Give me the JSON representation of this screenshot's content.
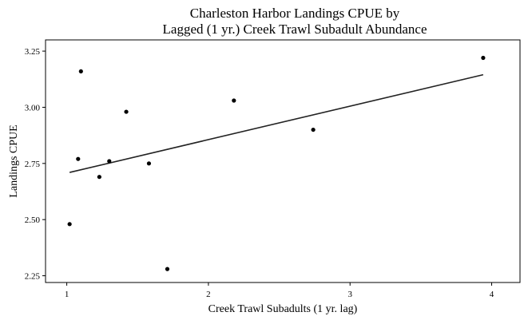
{
  "chart_data": {
    "type": "scatter",
    "title": [
      "Charleston Harbor Landings CPUE by",
      "Lagged (1 yr.) Creek Trawl Subadult Abundance"
    ],
    "xlabel": "Creek Trawl Subadults (1 yr. lag)",
    "ylabel": "Landings CPUE",
    "xlim": [
      0.85,
      4.2
    ],
    "ylim": [
      2.22,
      3.3
    ],
    "xticks": [
      1,
      2,
      3,
      4
    ],
    "yticks": [
      2.25,
      2.5,
      2.75,
      3.0,
      3.25
    ],
    "xtick_labels": [
      "1",
      "2",
      "3",
      "4"
    ],
    "ytick_labels": [
      "2.25",
      "2.50",
      "2.75",
      "3.00",
      "3.25"
    ],
    "grid": false,
    "points": [
      {
        "x": 1.02,
        "y": 2.48
      },
      {
        "x": 1.08,
        "y": 2.77
      },
      {
        "x": 1.1,
        "y": 3.16
      },
      {
        "x": 1.23,
        "y": 2.69
      },
      {
        "x": 1.3,
        "y": 2.76
      },
      {
        "x": 1.42,
        "y": 2.98
      },
      {
        "x": 1.58,
        "y": 2.75
      },
      {
        "x": 1.71,
        "y": 2.28
      },
      {
        "x": 2.18,
        "y": 3.03
      },
      {
        "x": 2.74,
        "y": 2.9
      },
      {
        "x": 3.94,
        "y": 3.22
      }
    ],
    "trend_line": {
      "x": [
        1.02,
        3.94
      ],
      "y": [
        2.71,
        3.145
      ]
    }
  }
}
